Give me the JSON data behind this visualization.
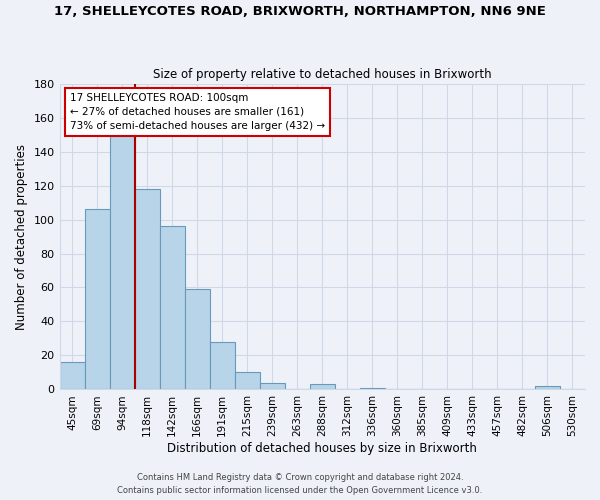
{
  "title_line1": "17, SHELLEYCOTES ROAD, BRIXWORTH, NORTHAMPTON, NN6 9NE",
  "title_line2": "Size of property relative to detached houses in Brixworth",
  "xlabel": "Distribution of detached houses by size in Brixworth",
  "ylabel": "Number of detached properties",
  "bar_labels": [
    "45sqm",
    "69sqm",
    "94sqm",
    "118sqm",
    "142sqm",
    "166sqm",
    "191sqm",
    "215sqm",
    "239sqm",
    "263sqm",
    "288sqm",
    "312sqm",
    "336sqm",
    "360sqm",
    "385sqm",
    "409sqm",
    "433sqm",
    "457sqm",
    "482sqm",
    "506sqm",
    "530sqm"
  ],
  "bar_heights": [
    16,
    106,
    149,
    118,
    96,
    59,
    28,
    10,
    4,
    0,
    3,
    0,
    1,
    0,
    0,
    0,
    0,
    0,
    0,
    2,
    0
  ],
  "bar_color": "#b8d4e8",
  "bar_edge_color": "#6699bb",
  "ylim": [
    0,
    180
  ],
  "yticks": [
    0,
    20,
    40,
    60,
    80,
    100,
    120,
    140,
    160,
    180
  ],
  "vline_position": 2.5,
  "vline_color": "#aa0000",
  "annotation_text": "17 SHELLEYCOTES ROAD: 100sqm\n← 27% of detached houses are smaller (161)\n73% of semi-detached houses are larger (432) →",
  "footer_line1": "Contains HM Land Registry data © Crown copyright and database right 2024.",
  "footer_line2": "Contains public sector information licensed under the Open Government Licence v3.0.",
  "background_color": "#eef2f8",
  "grid_color": "#d0d8e8"
}
